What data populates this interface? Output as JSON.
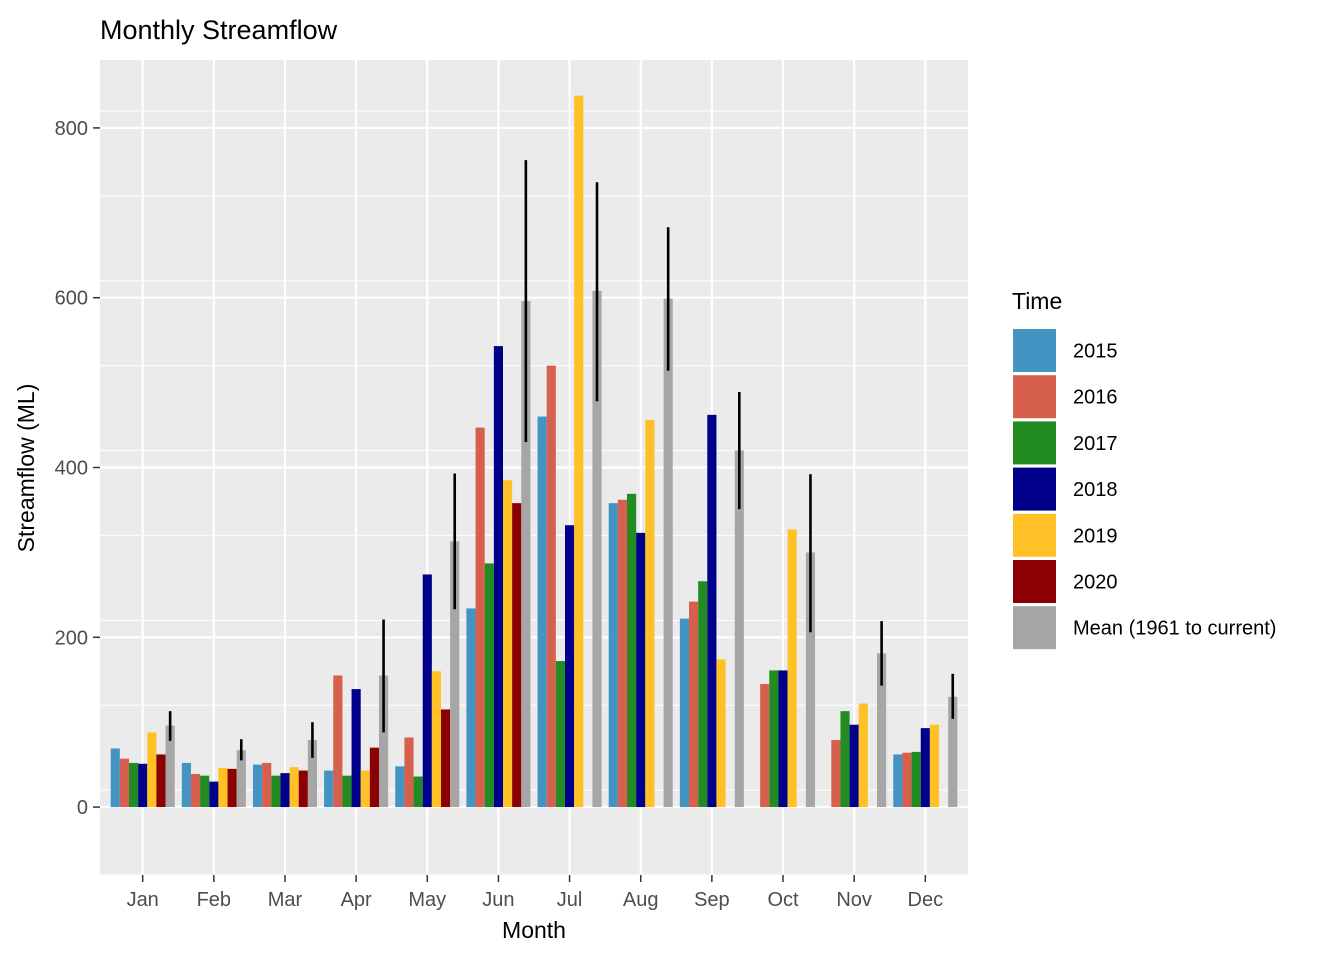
{
  "chart_data": {
    "type": "bar",
    "title": "Monthly Streamflow",
    "xlabel": "Month",
    "ylabel": "Streamflow (ML)",
    "ylim": [
      -80,
      880
    ],
    "yticks": [
      0,
      200,
      400,
      600,
      800
    ],
    "grid": true,
    "legend_title": "Time",
    "legend_position": "right",
    "categories": [
      "Jan",
      "Feb",
      "Mar",
      "Apr",
      "May",
      "Jun",
      "Jul",
      "Aug",
      "Sep",
      "Oct",
      "Nov",
      "Dec"
    ],
    "series": [
      {
        "name": "2015",
        "color": "#4393c3",
        "values": [
          69,
          52,
          50,
          43,
          48,
          234,
          460,
          358,
          222,
          null,
          null,
          62
        ]
      },
      {
        "name": "2016",
        "color": "#d6604d",
        "values": [
          57,
          39,
          52,
          155,
          82,
          447,
          520,
          362,
          242,
          145,
          79,
          64
        ]
      },
      {
        "name": "2017",
        "color": "#228b22",
        "values": [
          52,
          37,
          37,
          37,
          36,
          287,
          172,
          369,
          266,
          161,
          113,
          65
        ]
      },
      {
        "name": "2018",
        "color": "#00008b",
        "values": [
          51,
          30,
          40,
          139,
          274,
          543,
          332,
          323,
          462,
          161,
          97,
          93
        ]
      },
      {
        "name": "2019",
        "color": "#ffc125",
        "values": [
          88,
          46,
          47,
          43,
          160,
          385,
          838,
          456,
          174,
          327,
          122,
          97
        ]
      },
      {
        "name": "2020",
        "color": "#8b0000",
        "values": [
          62,
          45,
          43,
          70,
          115,
          358,
          null,
          null,
          null,
          null,
          null,
          null
        ]
      },
      {
        "name": "Mean (1961 to current)",
        "color": "#a6a6a6",
        "values": [
          96,
          67,
          79,
          155,
          313,
          596,
          608,
          599,
          420,
          300,
          181,
          130
        ],
        "error_low": [
          78,
          55,
          58,
          88,
          233,
          430,
          478,
          514,
          351,
          206,
          143,
          104
        ],
        "error_high": [
          113,
          80,
          100,
          221,
          393,
          762,
          736,
          683,
          489,
          392,
          219,
          157
        ]
      }
    ]
  }
}
